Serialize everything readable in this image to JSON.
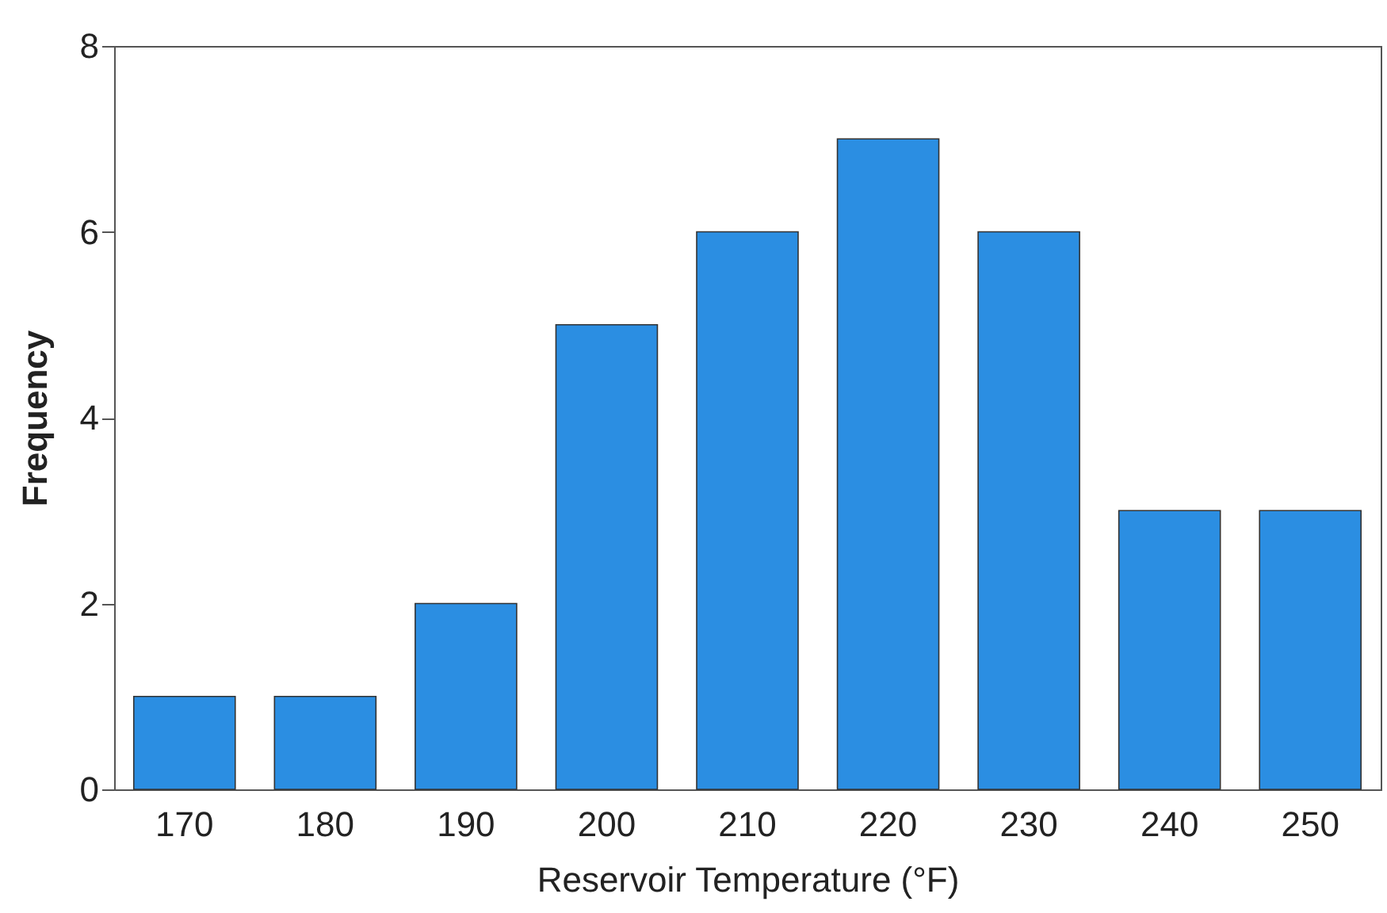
{
  "chart_data": {
    "type": "bar",
    "xlabel": "Reservoir Temperature (°F)",
    "ylabel": "Frequency",
    "categories": [
      "170",
      "180",
      "190",
      "200",
      "210",
      "220",
      "230",
      "240",
      "250"
    ],
    "values": [
      1,
      1,
      2,
      5,
      6,
      7,
      6,
      3,
      3
    ],
    "color": "#2b8ee2",
    "ylim": [
      0,
      8
    ],
    "yticks": [
      0,
      2,
      4,
      6,
      8
    ],
    "grid": false
  }
}
